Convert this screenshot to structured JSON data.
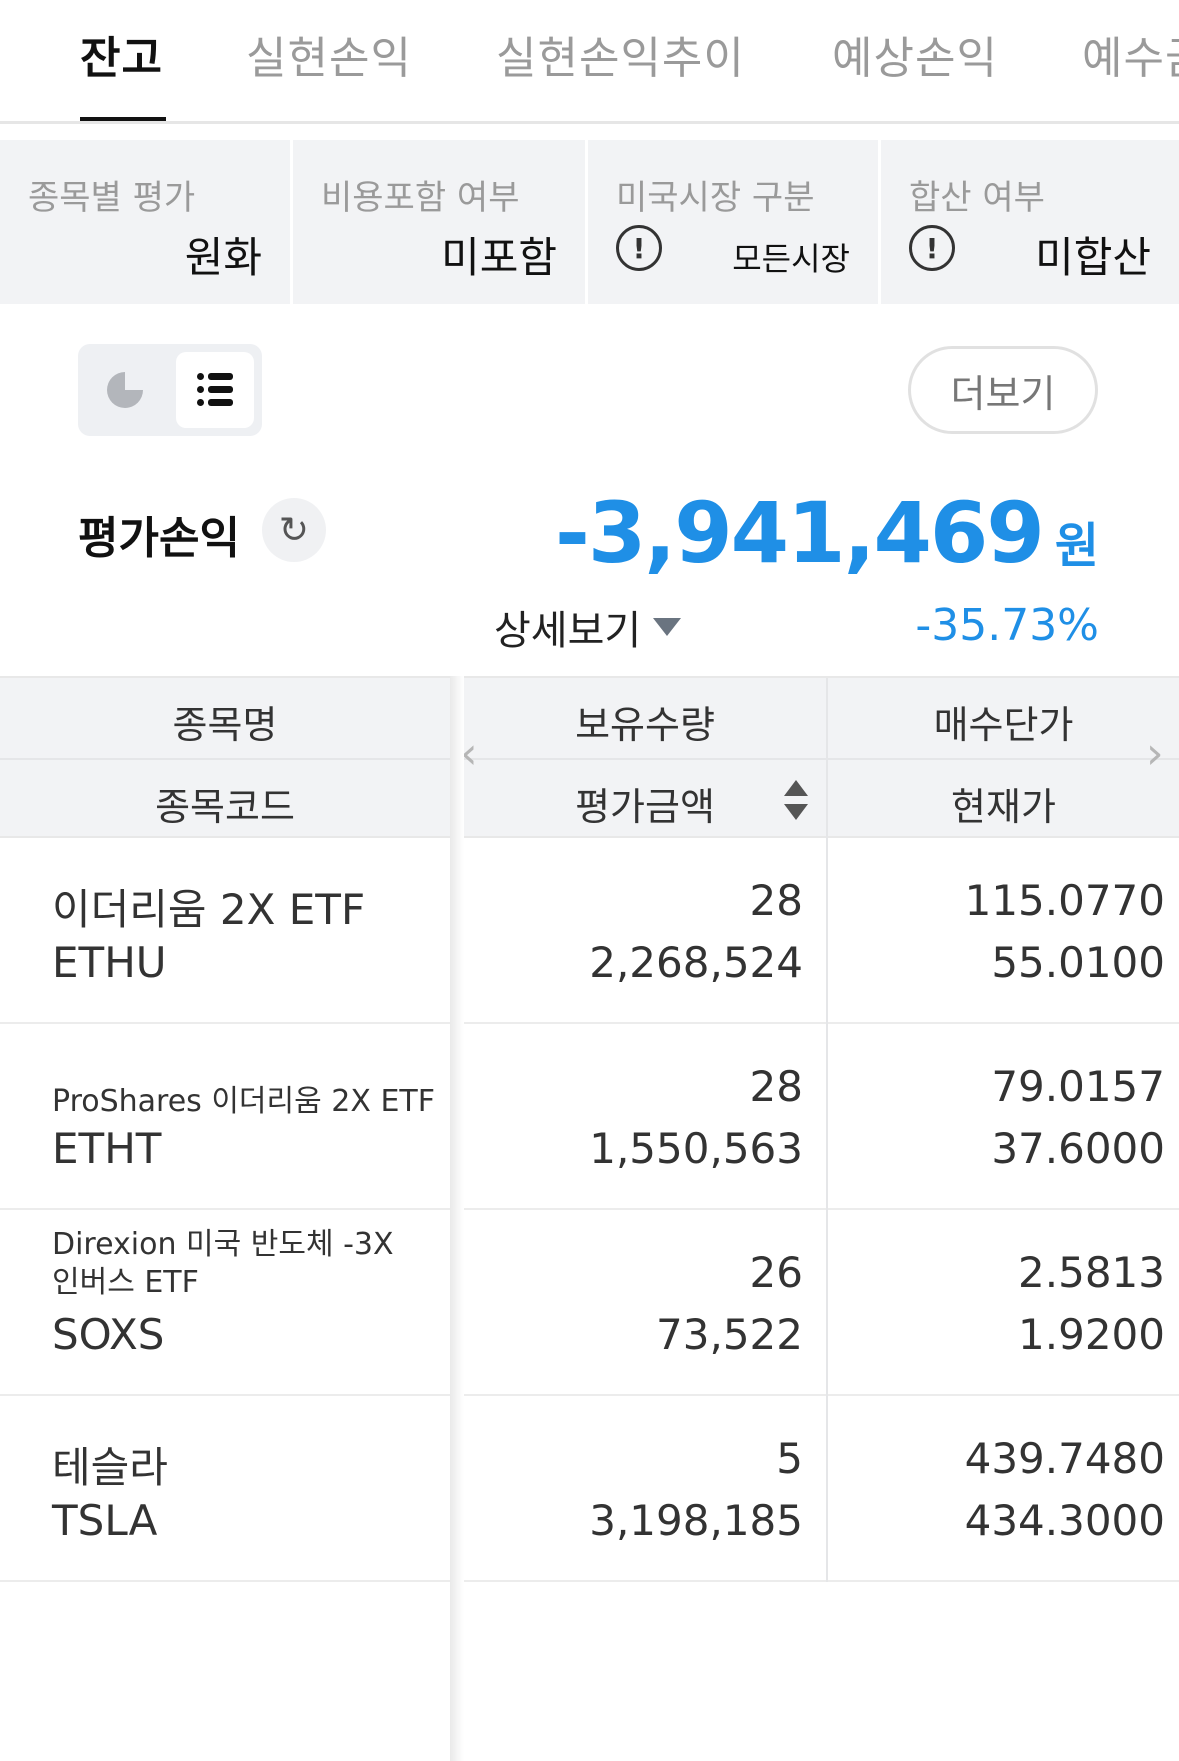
{
  "tabs": [
    {
      "label": "잔고",
      "active": true
    },
    {
      "label": "실현손익"
    },
    {
      "label": "실현손익추이"
    },
    {
      "label": "예상손익"
    },
    {
      "label": "예수금"
    }
  ],
  "filters": {
    "valuation": {
      "label": "종목별 평가",
      "value": "원화"
    },
    "cost": {
      "label": "비용포함 여부",
      "value": "미포함"
    },
    "market": {
      "label": "미국시장 구분",
      "value": "모든시장",
      "icon": "info-icon"
    },
    "merge": {
      "label": "합산 여부",
      "value": "미합산",
      "icon": "info-icon"
    }
  },
  "view_toggle": {
    "options": [
      "pie-chart-icon",
      "list-icon"
    ],
    "selected": "list-icon"
  },
  "more_button": "더보기",
  "summary": {
    "label": "평가손익",
    "value": "-3,941,469",
    "unit": "원",
    "rate": "-35.73%",
    "detail_label": "상세보기",
    "accent_color": "#1f8fe6"
  },
  "table": {
    "headers": {
      "col1_top": "종목명",
      "col1_bottom": "종목코드",
      "col2_top": "보유수량",
      "col2_bottom": "평가금액",
      "col3_top": "매수단가",
      "col3_bottom": "현재가"
    },
    "rows": [
      {
        "name": "이더리움 2X ETF",
        "code": "ETHU",
        "qty": "28",
        "amount": "2,268,524",
        "buy_price": "115.0770",
        "cur_price": "55.0100"
      },
      {
        "name": "ProShares 이더리움 2X ETF",
        "code": "ETHT",
        "qty": "28",
        "amount": "1,550,563",
        "buy_price": "79.0157",
        "cur_price": "37.6000"
      },
      {
        "name": "Direxion 미국 반도체 -3X 인버스 ETF",
        "code": "SOXS",
        "qty": "26",
        "amount": "73,522",
        "buy_price": "2.5813",
        "cur_price": "1.9200"
      },
      {
        "name": "테슬라",
        "code": "TSLA",
        "qty": "5",
        "amount": "3,198,185",
        "buy_price": "439.7480",
        "cur_price": "434.3000"
      }
    ]
  }
}
